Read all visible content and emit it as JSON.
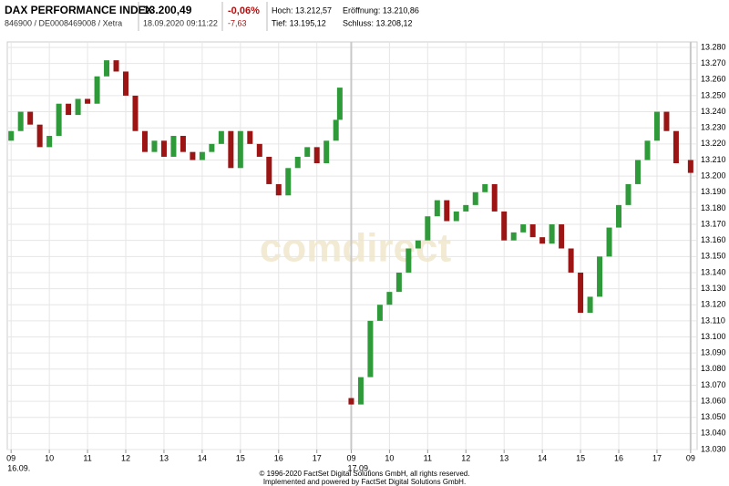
{
  "header": {
    "name": "DAX PERFORMANCE INDEX",
    "ids": "846900 / DE0008469008 / Xetra",
    "price": "13.200,49",
    "datetime": "18.09.2020 09:11:22",
    "change_pct": "-0,06%",
    "change_abs": "-7,63",
    "high": "Hoch: 13.212,57",
    "open": "Eröffnung: 13.210,86",
    "low": "Tief: 13.195,12",
    "close": "Schluss: 13.208,12"
  },
  "watermark": "comdirect",
  "footer": [
    "© 1996-2020 FactSet Digital Solutions GmbH, all rights reserved.",
    "Implemented and powered by FactSet Digital Solutions GmbH."
  ],
  "chart_data": {
    "type": "candlestick",
    "up_color": "#2f9a3a",
    "down_color": "#9c1414",
    "grid": true,
    "ylim": [
      13030,
      13280
    ],
    "yticks": [
      {
        "value": 13030,
        "label": "13.030"
      },
      {
        "value": 13040,
        "label": "13.040"
      },
      {
        "value": 13050,
        "label": "13.050"
      },
      {
        "value": 13060,
        "label": "13.060"
      },
      {
        "value": 13070,
        "label": "13.070"
      },
      {
        "value": 13080,
        "label": "13.080"
      },
      {
        "value": 13090,
        "label": "13.090"
      },
      {
        "value": 13100,
        "label": "13.100"
      },
      {
        "value": 13110,
        "label": "13.110"
      },
      {
        "value": 13120,
        "label": "13.120"
      },
      {
        "value": 13130,
        "label": "13.130"
      },
      {
        "value": 13140,
        "label": "13.140"
      },
      {
        "value": 13150,
        "label": "13.150"
      },
      {
        "value": 13160,
        "label": "13.160"
      },
      {
        "value": 13170,
        "label": "13.170"
      },
      {
        "value": 13180,
        "label": "13.180"
      },
      {
        "value": 13190,
        "label": "13.190"
      },
      {
        "value": 13200,
        "label": "13.200"
      },
      {
        "value": 13210,
        "label": "13.210"
      },
      {
        "value": 13220,
        "label": "13.220"
      },
      {
        "value": 13230,
        "label": "13.230"
      },
      {
        "value": 13240,
        "label": "13.240"
      },
      {
        "value": 13250,
        "label": "13.250"
      },
      {
        "value": 13260,
        "label": "13.260"
      },
      {
        "value": 13270,
        "label": "13.270"
      },
      {
        "value": 13280,
        "label": "13.280"
      }
    ],
    "xlim": [
      -0.1,
      17.95
    ],
    "xticks": [
      {
        "value": 0,
        "label": "09"
      },
      {
        "value": 1,
        "label": "10"
      },
      {
        "value": 2,
        "label": "11"
      },
      {
        "value": 3,
        "label": "12"
      },
      {
        "value": 4,
        "label": "13"
      },
      {
        "value": 5,
        "label": "14"
      },
      {
        "value": 6,
        "label": "15"
      },
      {
        "value": 7,
        "label": "16"
      },
      {
        "value": 8,
        "label": "17"
      },
      {
        "value": 8.9,
        "label": "09"
      },
      {
        "value": 9.9,
        "label": "10"
      },
      {
        "value": 10.9,
        "label": "11"
      },
      {
        "value": 11.9,
        "label": "12"
      },
      {
        "value": 12.9,
        "label": "13"
      },
      {
        "value": 13.9,
        "label": "14"
      },
      {
        "value": 14.9,
        "label": "15"
      },
      {
        "value": 15.9,
        "label": "16"
      },
      {
        "value": 16.9,
        "label": "17"
      },
      {
        "value": 17.78,
        "label": "09"
      }
    ],
    "x_date_labels": [
      {
        "value": 0,
        "label": "16.09."
      },
      {
        "value": 8.9,
        "label": "17.09."
      }
    ],
    "day_breaks": [
      8.9,
      17.78
    ],
    "x": [
      0,
      0.25,
      0.5,
      0.75,
      1,
      1.25,
      1.5,
      1.75,
      2,
      2.25,
      2.5,
      2.75,
      3,
      3.25,
      3.5,
      3.75,
      4,
      4.25,
      4.5,
      4.75,
      5,
      5.25,
      5.5,
      5.75,
      6,
      6.25,
      6.5,
      6.75,
      7,
      7.25,
      7.5,
      7.75,
      8,
      8.25,
      8.5,
      8.6,
      8.9,
      9.15,
      9.4,
      9.65,
      9.9,
      10.15,
      10.4,
      10.65,
      10.9,
      11.15,
      11.4,
      11.65,
      11.9,
      12.15,
      12.4,
      12.65,
      12.9,
      13.15,
      13.4,
      13.65,
      13.9,
      14.15,
      14.4,
      14.65,
      14.9,
      15.15,
      15.4,
      15.65,
      15.9,
      16.15,
      16.4,
      16.65,
      16.9,
      17.15,
      17.4,
      17.78
    ],
    "open": [
      13222,
      13228,
      13240,
      13232,
      13218,
      13225,
      13245,
      13238,
      13248,
      13245,
      13262,
      13272,
      13265,
      13250,
      13228,
      13215,
      13222,
      13212,
      13225,
      13215,
      13210,
      13215,
      13220,
      13228,
      13205,
      13228,
      13220,
      13212,
      13195,
      13188,
      13205,
      13212,
      13218,
      13208,
      13222,
      13235,
      13062,
      13058,
      13075,
      13110,
      13120,
      13128,
      13140,
      13155,
      13160,
      13175,
      13185,
      13172,
      13178,
      13182,
      13190,
      13195,
      13178,
      13160,
      13165,
      13170,
      13162,
      13158,
      13170,
      13155,
      13140,
      13115,
      13125,
      13150,
      13168,
      13182,
      13195,
      13210,
      13222,
      13240,
      13228,
      13210
    ],
    "close": [
      13228,
      13240,
      13232,
      13218,
      13225,
      13245,
      13238,
      13248,
      13245,
      13262,
      13272,
      13265,
      13250,
      13228,
      13215,
      13222,
      13212,
      13225,
      13215,
      13210,
      13215,
      13220,
      13228,
      13205,
      13228,
      13220,
      13212,
      13195,
      13188,
      13205,
      13212,
      13218,
      13208,
      13222,
      13235,
      13255,
      13058,
      13075,
      13110,
      13120,
      13128,
      13140,
      13155,
      13160,
      13175,
      13185,
      13172,
      13178,
      13182,
      13190,
      13195,
      13178,
      13160,
      13165,
      13170,
      13162,
      13158,
      13170,
      13155,
      13140,
      13115,
      13125,
      13150,
      13168,
      13182,
      13195,
      13210,
      13222,
      13240,
      13228,
      13208,
      13202
    ]
  }
}
